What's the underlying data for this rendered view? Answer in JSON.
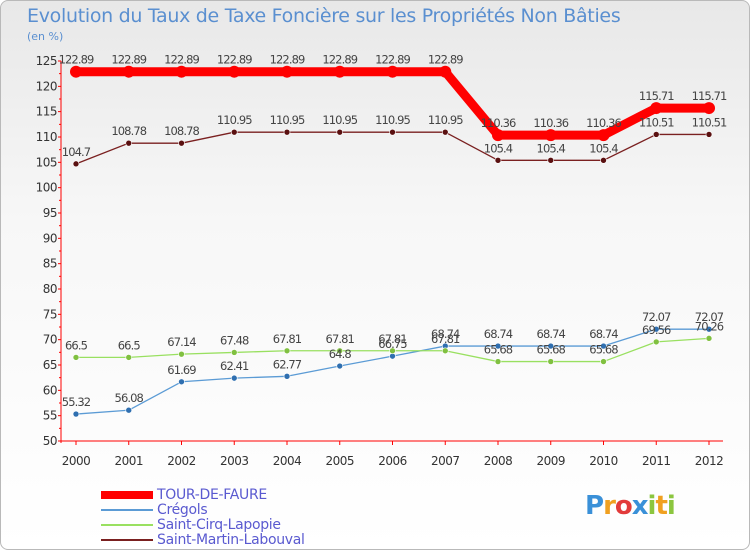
{
  "chart_data": {
    "type": "line",
    "title": "Evolution du Taux de Taxe Foncière sur les Propriétés Non Bâties",
    "ylabel": "(en %)",
    "ylim": [
      50,
      125
    ],
    "yticks": [
      50,
      55,
      60,
      65,
      70,
      75,
      80,
      85,
      90,
      95,
      100,
      105,
      110,
      115,
      120,
      125
    ],
    "categories": [
      "2000",
      "2001",
      "2002",
      "2003",
      "2004",
      "2005",
      "2006",
      "2007",
      "2008",
      "2009",
      "2010",
      "2011",
      "2012"
    ],
    "series": [
      {
        "name": "TOUR-DE-FAURE",
        "color": "#ff0000",
        "values": [
          122.89,
          122.89,
          122.89,
          122.89,
          122.89,
          122.89,
          122.89,
          122.89,
          110.36,
          110.36,
          110.36,
          115.71,
          115.71
        ],
        "labels": [
          "122.89",
          "122.89",
          "122.89",
          "122.89",
          "122.89",
          "122.89",
          "122.89",
          "122.89",
          "110.36",
          "110.36",
          "110.36",
          "115.71",
          "115.71"
        ]
      },
      {
        "name": "Crégols",
        "color": "#5b9bd5",
        "values": [
          55.32,
          56.08,
          61.69,
          62.41,
          62.77,
          64.8,
          66.75,
          68.74,
          68.74,
          68.74,
          68.74,
          72.07,
          72.07
        ],
        "labels": [
          "55.32",
          "56.08",
          "61.69",
          "62.41",
          "62.77",
          "64.8",
          "66.75",
          "68.74",
          "68.74",
          "68.74",
          "68.74",
          "72.07",
          "72.07"
        ]
      },
      {
        "name": "Saint-Cirq-Lapopie",
        "color": "#99e060",
        "values": [
          66.5,
          66.5,
          67.14,
          67.48,
          67.81,
          67.81,
          67.81,
          67.81,
          65.68,
          65.68,
          65.68,
          69.56,
          70.26
        ],
        "labels": [
          "66.5",
          "66.5",
          "67.14",
          "67.48",
          "67.81",
          "67.81",
          "67.81",
          "67.81",
          "65.68",
          "65.68",
          "65.68",
          "69.56",
          "70.26"
        ]
      },
      {
        "name": "Saint-Martin-Labouval",
        "color": "#7a2020",
        "values": [
          104.7,
          108.78,
          108.78,
          110.95,
          110.95,
          110.95,
          110.95,
          110.95,
          105.4,
          105.4,
          105.4,
          110.51,
          110.51
        ],
        "labels": [
          "104.7",
          "108.78",
          "108.78",
          "110.95",
          "110.95",
          "110.95",
          "110.95",
          "110.95",
          "105.4",
          "105.4",
          "105.4",
          "110.51",
          "110.51"
        ]
      }
    ],
    "legend": "bottom-left",
    "grid": false
  },
  "branding": {
    "logo_letters": [
      "P",
      "r",
      "o",
      "x",
      "i",
      "t",
      "i"
    ],
    "logo_colors": [
      "#3a90d8",
      "#f0a020",
      "#e23b3b",
      "#3a90d8",
      "#8cc63f",
      "#f0a020",
      "#8cc63f"
    ]
  }
}
